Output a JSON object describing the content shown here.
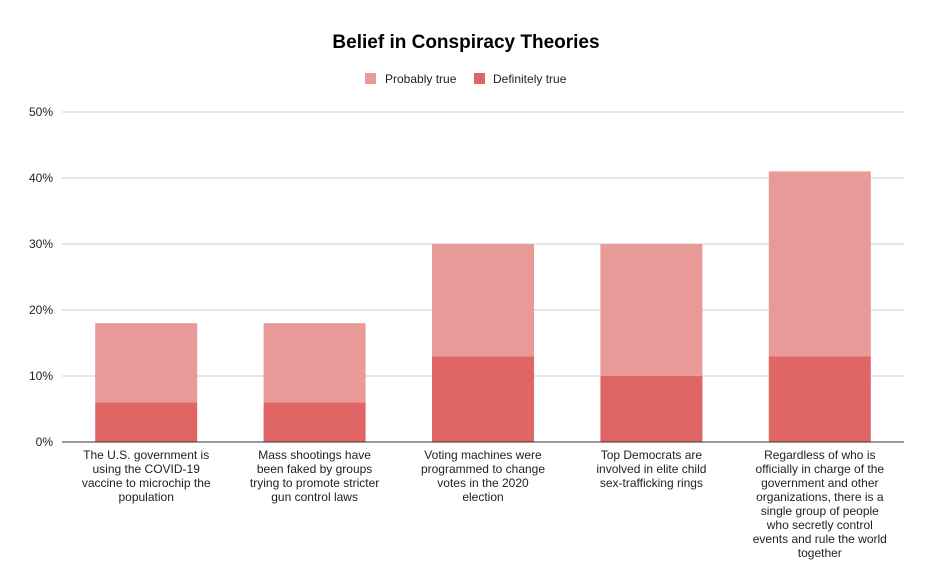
{
  "chart_data": {
    "type": "bar",
    "stacked": true,
    "title": "Belief in Conspiracy Theories",
    "xlabel": "",
    "ylabel": "",
    "ylim": [
      0,
      50
    ],
    "yticks": [
      "0%",
      "10%",
      "20%",
      "30%",
      "40%",
      "50%"
    ],
    "legend_position": "top-center",
    "grid": true,
    "categories": [
      "The U.S. government is using the COVID-19 vaccine to microchip the population",
      "Mass shootings have been faked by groups trying to promote stricter gun control laws",
      "Voting machines were programmed to change votes in the 2020 election",
      "Top Democrats are involved in elite child sex-trafficking rings",
      "Regardless of who is officially in charge of the government and other organizations, there is a single group of people who secretly control events and rule the world together"
    ],
    "series": [
      {
        "name": "Definitely true",
        "color": "#e06666",
        "values": [
          6,
          6,
          13,
          10,
          13
        ]
      },
      {
        "name": "Probably true",
        "color": "#ea9999",
        "values": [
          12,
          12,
          17,
          20,
          28
        ]
      }
    ],
    "legend": [
      "Probably true",
      "Definitely true"
    ]
  }
}
